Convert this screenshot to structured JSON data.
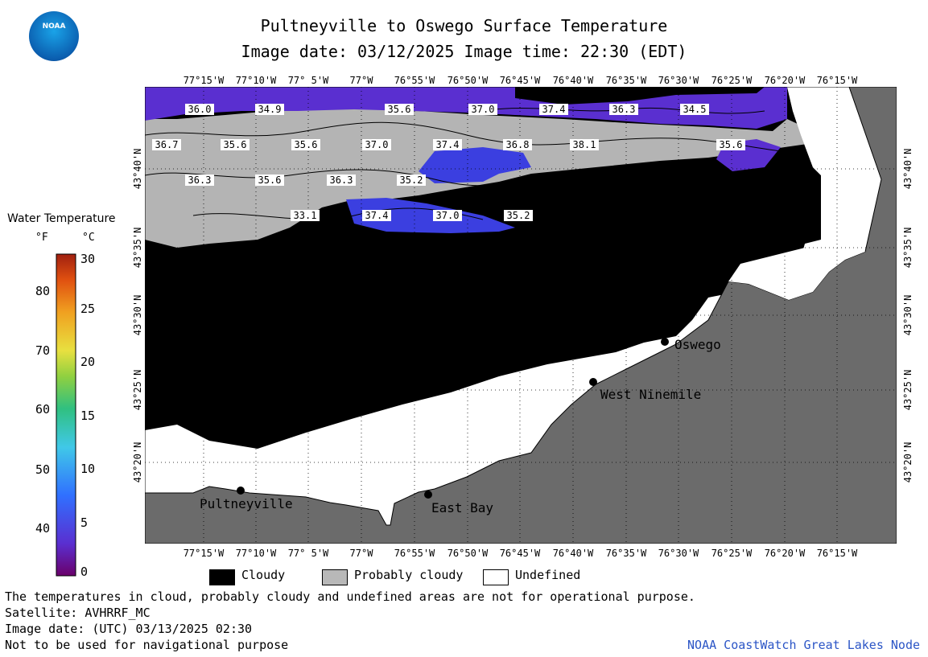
{
  "header": {
    "title": "Pultneyville to Oswego Surface Temperature",
    "subtitle": "Image date: 03/12/2025     Image time: 22:30 (EDT)",
    "logo_text": "NOAA"
  },
  "legend": {
    "title": "Water Temperature",
    "unit_f": "°F",
    "unit_c": "°C",
    "f_ticks": [
      "80",
      "70",
      "60",
      "50",
      "40"
    ],
    "c_ticks": [
      "30",
      "25",
      "20",
      "15",
      "10",
      "5",
      "0"
    ]
  },
  "map": {
    "lon_labels": [
      "77°15'W",
      "77°10'W",
      "77° 5'W",
      "77°W",
      "76°55'W",
      "76°50'W",
      "76°45'W",
      "76°40'W",
      "76°35'W",
      "76°30'W",
      "76°25'W",
      "76°20'W",
      "76°15'W"
    ],
    "lat_labels": [
      "43°40'N",
      "43°35'N",
      "43°30'N",
      "43°25'N",
      "43°20'N"
    ],
    "cities": [
      "Pultneyville",
      "East Bay",
      "West Ninemile",
      "Oswego"
    ],
    "temps": [
      "36.0",
      "34.9",
      "35.6",
      "37.0",
      "37.4",
      "36.3",
      "34.5",
      "36.7",
      "35.6",
      "35.6",
      "37.0",
      "37.4",
      "36.8",
      "38.1",
      "35.6",
      "36.3",
      "35.6",
      "36.3",
      "35.2",
      "33.1",
      "37.4",
      "37.0",
      "35.2"
    ],
    "colors": {
      "cloud": "#000000",
      "probably_cloudy": "#b8b8b8",
      "undefined": "#ffffff",
      "land": "#6b6b6b",
      "water_cold": "#5a2fd0",
      "water_blue": "#3b3fe0"
    }
  },
  "bottom_legend": {
    "cloudy": "Cloudy",
    "probably_cloudy": "Probably cloudy",
    "undefined": "Undefined"
  },
  "notes": {
    "line1": "The temperatures in cloud, probably cloudy and undefined areas are not for operational purpose.",
    "line2": "Satellite: AVHRRF_MC",
    "line3": "Image date: (UTC) 03/13/2025  02:30",
    "line4": "Not to be used for navigational purpose",
    "credit": "NOAA CoastWatch Great Lakes Node"
  }
}
